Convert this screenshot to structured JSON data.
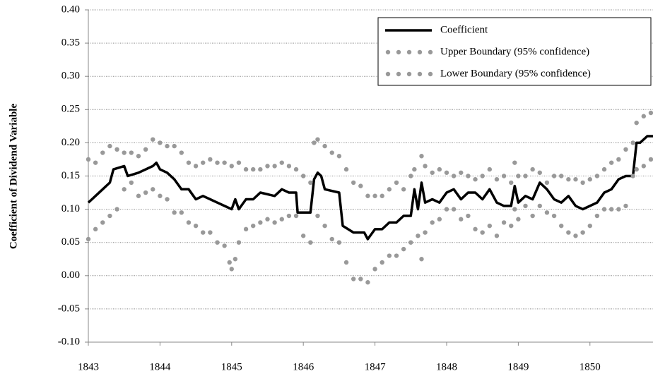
{
  "chart_data": {
    "type": "line",
    "y_label": "Coefficient of Dividend Variable",
    "xlim": [
      1843,
      1850.88
    ],
    "xticks": [
      1843,
      1844,
      1845,
      1846,
      1847,
      1848,
      1849,
      1850
    ],
    "ylim": [
      -0.1,
      0.4
    ],
    "yticks": [
      {
        "value": -0.1,
        "label": "-0.10"
      },
      {
        "value": -0.05,
        "label": "-0.05"
      },
      {
        "value": 0,
        "label": "0.00"
      },
      {
        "value": 0.05,
        "label": "0.05"
      },
      {
        "value": 0.1,
        "label": "0.10"
      },
      {
        "value": 0.15,
        "label": "0.15"
      },
      {
        "value": 0.2,
        "label": "0.20"
      },
      {
        "value": 0.25,
        "label": "0.25"
      },
      {
        "value": 0.3,
        "label": "0.30"
      },
      {
        "value": 0.35,
        "label": "0.35"
      },
      {
        "value": 0.4,
        "label": "0.40"
      }
    ],
    "grid": true,
    "legend": "top-right",
    "series": [
      {
        "name": "Coefficient",
        "color": "#000000",
        "style": "solid",
        "x": [
          1843.0,
          1843.1,
          1843.2,
          1843.3,
          1843.35,
          1843.5,
          1843.55,
          1843.7,
          1843.9,
          1843.95,
          1844.0,
          1844.1,
          1844.2,
          1844.3,
          1844.4,
          1844.5,
          1844.6,
          1844.7,
          1844.8,
          1844.9,
          1845.0,
          1845.05,
          1845.1,
          1845.2,
          1845.3,
          1845.4,
          1845.6,
          1845.7,
          1845.8,
          1845.9,
          1845.92,
          1846.1,
          1846.15,
          1846.2,
          1846.25,
          1846.3,
          1846.5,
          1846.55,
          1846.7,
          1846.85,
          1846.9,
          1847.0,
          1847.1,
          1847.2,
          1847.3,
          1847.4,
          1847.5,
          1847.55,
          1847.6,
          1847.65,
          1847.7,
          1847.8,
          1847.9,
          1848.0,
          1848.1,
          1848.2,
          1848.3,
          1848.4,
          1848.5,
          1848.6,
          1848.7,
          1848.8,
          1848.9,
          1848.95,
          1849.0,
          1849.1,
          1849.2,
          1849.3,
          1849.4,
          1849.5,
          1849.6,
          1849.7,
          1849.8,
          1849.9,
          1850.0,
          1850.1,
          1850.2,
          1850.3,
          1850.4,
          1850.5,
          1850.6,
          1850.65,
          1850.7,
          1850.8,
          1850.88
        ],
        "values": [
          0.11,
          0.12,
          0.13,
          0.14,
          0.16,
          0.165,
          0.15,
          0.155,
          0.165,
          0.17,
          0.16,
          0.155,
          0.145,
          0.13,
          0.13,
          0.115,
          0.12,
          0.115,
          0.11,
          0.105,
          0.1,
          0.115,
          0.1,
          0.115,
          0.115,
          0.125,
          0.12,
          0.13,
          0.125,
          0.125,
          0.095,
          0.095,
          0.145,
          0.155,
          0.15,
          0.13,
          0.125,
          0.075,
          0.065,
          0.065,
          0.055,
          0.07,
          0.07,
          0.08,
          0.08,
          0.09,
          0.09,
          0.13,
          0.1,
          0.14,
          0.11,
          0.115,
          0.11,
          0.125,
          0.13,
          0.115,
          0.125,
          0.125,
          0.115,
          0.13,
          0.11,
          0.105,
          0.105,
          0.135,
          0.11,
          0.12,
          0.115,
          0.14,
          0.13,
          0.115,
          0.11,
          0.12,
          0.105,
          0.1,
          0.105,
          0.11,
          0.125,
          0.13,
          0.145,
          0.15,
          0.15,
          0.2,
          0.2,
          0.21,
          0.21
        ]
      },
      {
        "name": "Upper Boundary (95% confidence)",
        "color": "#999999",
        "style": "dotted",
        "x": [
          1843.0,
          1843.1,
          1843.2,
          1843.3,
          1843.4,
          1843.5,
          1843.6,
          1843.7,
          1843.8,
          1843.9,
          1844.0,
          1844.1,
          1844.2,
          1844.3,
          1844.4,
          1844.5,
          1844.6,
          1844.7,
          1844.8,
          1844.9,
          1845.0,
          1845.1,
          1845.2,
          1845.3,
          1845.4,
          1845.5,
          1845.6,
          1845.7,
          1845.8,
          1845.9,
          1846.0,
          1846.1,
          1846.15,
          1846.2,
          1846.3,
          1846.4,
          1846.5,
          1846.6,
          1846.7,
          1846.8,
          1846.9,
          1847.0,
          1847.1,
          1847.2,
          1847.3,
          1847.4,
          1847.5,
          1847.55,
          1847.65,
          1847.7,
          1847.8,
          1847.9,
          1848.0,
          1848.1,
          1848.2,
          1848.3,
          1848.4,
          1848.5,
          1848.6,
          1848.7,
          1848.8,
          1848.9,
          1848.95,
          1849.0,
          1849.1,
          1849.2,
          1849.3,
          1849.4,
          1849.5,
          1849.6,
          1849.7,
          1849.8,
          1849.9,
          1850.0,
          1850.1,
          1850.2,
          1850.3,
          1850.4,
          1850.5,
          1850.6,
          1850.65,
          1850.75,
          1850.85
        ],
        "values": [
          0.175,
          0.17,
          0.185,
          0.195,
          0.19,
          0.185,
          0.185,
          0.18,
          0.19,
          0.205,
          0.2,
          0.195,
          0.195,
          0.185,
          0.17,
          0.165,
          0.17,
          0.175,
          0.17,
          0.17,
          0.165,
          0.17,
          0.16,
          0.16,
          0.16,
          0.165,
          0.165,
          0.17,
          0.165,
          0.16,
          0.15,
          0.14,
          0.2,
          0.205,
          0.195,
          0.185,
          0.18,
          0.16,
          0.14,
          0.135,
          0.12,
          0.12,
          0.12,
          0.13,
          0.14,
          0.13,
          0.15,
          0.16,
          0.18,
          0.165,
          0.155,
          0.16,
          0.155,
          0.15,
          0.155,
          0.15,
          0.145,
          0.15,
          0.16,
          0.145,
          0.15,
          0.14,
          0.17,
          0.15,
          0.15,
          0.16,
          0.155,
          0.14,
          0.15,
          0.15,
          0.145,
          0.145,
          0.14,
          0.145,
          0.15,
          0.16,
          0.17,
          0.175,
          0.19,
          0.2,
          0.23,
          0.24,
          0.245
        ]
      },
      {
        "name": "Lower Boundary (95% confidence)",
        "color": "#999999",
        "style": "dotted",
        "x": [
          1843.0,
          1843.1,
          1843.2,
          1843.3,
          1843.4,
          1843.5,
          1843.6,
          1843.7,
          1843.8,
          1843.9,
          1844.0,
          1844.1,
          1844.2,
          1844.3,
          1844.4,
          1844.5,
          1844.6,
          1844.7,
          1844.8,
          1844.9,
          1844.97,
          1845.0,
          1845.05,
          1845.1,
          1845.2,
          1845.3,
          1845.4,
          1845.5,
          1845.6,
          1845.7,
          1845.8,
          1845.9,
          1846.0,
          1846.1,
          1846.2,
          1846.3,
          1846.4,
          1846.5,
          1846.6,
          1846.7,
          1846.8,
          1846.9,
          1847.0,
          1847.1,
          1847.2,
          1847.3,
          1847.4,
          1847.5,
          1847.6,
          1847.65,
          1847.7,
          1847.8,
          1847.9,
          1848.0,
          1848.1,
          1848.2,
          1848.3,
          1848.4,
          1848.5,
          1848.6,
          1848.7,
          1848.8,
          1848.9,
          1848.95,
          1849.0,
          1849.1,
          1849.2,
          1849.3,
          1849.4,
          1849.5,
          1849.6,
          1849.7,
          1849.8,
          1849.9,
          1850.0,
          1850.1,
          1850.2,
          1850.3,
          1850.4,
          1850.5,
          1850.6,
          1850.65,
          1850.75,
          1850.85
        ],
        "values": [
          0.055,
          0.07,
          0.08,
          0.09,
          0.1,
          0.13,
          0.14,
          0.12,
          0.125,
          0.13,
          0.12,
          0.115,
          0.095,
          0.095,
          0.08,
          0.075,
          0.065,
          0.065,
          0.05,
          0.045,
          0.02,
          0.01,
          0.025,
          0.05,
          0.07,
          0.075,
          0.08,
          0.085,
          0.08,
          0.085,
          0.09,
          0.09,
          0.06,
          0.05,
          0.09,
          0.075,
          0.055,
          0.05,
          0.02,
          -0.005,
          -0.005,
          -0.01,
          0.01,
          0.02,
          0.03,
          0.03,
          0.04,
          0.05,
          0.06,
          0.025,
          0.065,
          0.08,
          0.085,
          0.1,
          0.1,
          0.085,
          0.09,
          0.07,
          0.065,
          0.075,
          0.06,
          0.08,
          0.075,
          0.1,
          0.085,
          0.105,
          0.09,
          0.105,
          0.095,
          0.09,
          0.075,
          0.065,
          0.06,
          0.065,
          0.075,
          0.09,
          0.1,
          0.1,
          0.1,
          0.105,
          0.15,
          0.16,
          0.165,
          0.175
        ]
      }
    ]
  }
}
